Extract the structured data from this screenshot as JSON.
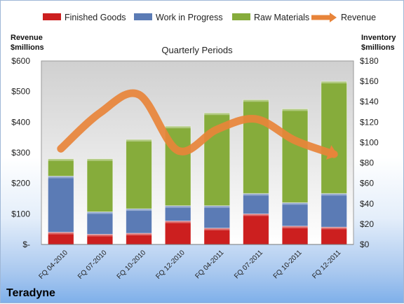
{
  "chart_data": {
    "type": "bar",
    "title": "Quarterly Periods",
    "company": "Teradyne",
    "stacked": true,
    "categories": [
      "FQ 04-2010",
      "FQ 07-2010",
      "FQ 10-2010",
      "FQ 12-2010",
      "FQ 04-2011",
      "FQ 07-2011",
      "FQ 10-2011",
      "FQ 12-2011"
    ],
    "ylabel_left": [
      "Revenue",
      "$millions"
    ],
    "ylabel_right": [
      "Inventory",
      "$millions"
    ],
    "y_left": {
      "lim": [
        0,
        600
      ],
      "ticks": [
        "$-",
        "$100",
        "$200",
        "$300",
        "$400",
        "$500",
        "$600"
      ]
    },
    "y_right": {
      "lim": [
        0,
        180
      ],
      "ticks": [
        "$0",
        "$20",
        "$40",
        "$60",
        "$80",
        "$100",
        "$120",
        "$140",
        "$160",
        "$180"
      ]
    },
    "series": [
      {
        "name": "Finished Goods",
        "axis": "right",
        "color": "#cc1f1f",
        "values": [
          12,
          10,
          11,
          23,
          16,
          30,
          18,
          17
        ]
      },
      {
        "name": "Work in Progress",
        "axis": "right",
        "color": "#5b7bb5",
        "values": [
          55,
          22,
          24,
          15,
          22,
          20,
          23,
          33
        ]
      },
      {
        "name": "Raw Materials",
        "axis": "right",
        "color": "#86ac3b",
        "values": [
          17,
          52,
          68,
          78,
          91,
          92,
          92,
          110
        ]
      },
      {
        "name": "Revenue",
        "axis": "left",
        "type": "line",
        "color": "#e8843a",
        "values": [
          313,
          430,
          490,
          307,
          376,
          410,
          340,
          295
        ]
      }
    ],
    "legend_position": "top",
    "grid": false
  }
}
